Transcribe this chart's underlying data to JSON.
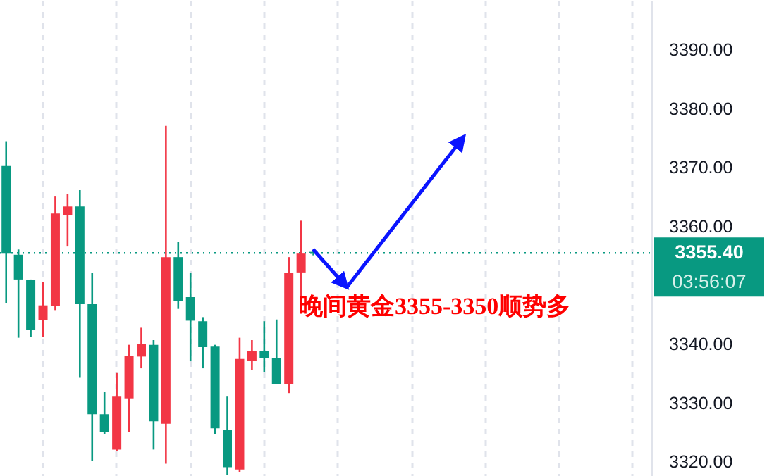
{
  "chart_data": {
    "type": "candlestick",
    "categories": [
      null,
      null,
      null,
      null,
      null,
      null,
      null,
      null,
      null,
      null,
      null,
      null,
      null,
      null,
      null,
      null,
      null,
      null,
      null,
      null,
      null,
      null,
      null,
      null,
      null,
      null,
      null,
      null,
      null,
      null,
      null,
      null,
      null,
      null,
      null,
      null,
      null,
      null,
      null,
      null,
      null,
      null,
      null,
      null,
      null,
      null,
      null,
      null,
      null,
      null,
      null,
      null,
      null
    ],
    "ohlc": [
      [
        3370.2,
        3374.4,
        3346.9,
        3355.3
      ],
      [
        3355.1,
        3356.0,
        3341.0,
        3350.9
      ],
      [
        3350.9,
        3350.9,
        3341.1,
        3342.4
      ],
      [
        3344.0,
        3350.5,
        3341.1,
        3346.5
      ],
      [
        3346.4,
        3365.0,
        3345.7,
        3362.1
      ],
      [
        3361.8,
        3365.4,
        3356.5,
        3363.3
      ],
      [
        3363.3,
        3366.1,
        3334.2,
        3346.7
      ],
      [
        3346.7,
        3352.0,
        3320.1,
        3328.0
      ],
      [
        3328.0,
        3331.8,
        3324.6,
        3325.0
      ],
      [
        3322.0,
        3335.0,
        3321.8,
        3331.0
      ],
      [
        3330.7,
        3339.8,
        3325.0,
        3337.9
      ],
      [
        3337.8,
        3342.7,
        3335.8,
        3340.0
      ],
      [
        3339.8,
        3340.6,
        3322.0,
        3326.8
      ],
      [
        3326.4,
        3377.0,
        3319.6,
        3354.7
      ],
      [
        3354.7,
        3357.3,
        3345.9,
        3347.3
      ],
      [
        3347.9,
        3352.0,
        3337.0,
        3343.9
      ],
      [
        3343.8,
        3344.5,
        3335.8,
        3339.4
      ],
      [
        3339.5,
        3339.8,
        3324.6,
        3325.6
      ],
      [
        3325.4,
        3331.0,
        3317.7,
        3319.0
      ],
      [
        3318.6,
        3341.0,
        3318.2,
        3337.4
      ],
      [
        3337.1,
        3340.6,
        3335.5,
        3338.7
      ],
      [
        3338.7,
        3343.8,
        3335.2,
        3337.6
      ],
      [
        3337.6,
        3344.1,
        3333.1,
        3333.1
      ],
      [
        3333.1,
        3354.7,
        3331.6,
        3352.1
      ],
      [
        3352.1,
        3360.9,
        3347.7,
        3355.3
      ],
      [
        3355.6,
        3355.9,
        3355.0,
        3355.4
      ],
      null,
      null,
      null,
      null,
      null,
      null,
      null,
      null,
      null,
      null,
      null,
      null,
      null,
      null,
      null,
      null,
      null,
      null,
      null,
      null,
      null,
      null,
      null,
      null,
      null,
      null,
      null
    ],
    "colors": [
      "#089981",
      "#089981",
      "#089981",
      "#f23645",
      "#f23645",
      "#f23645",
      "#089981",
      "#089981",
      "#089981",
      "#f23645",
      "#f23645",
      "#f23645",
      "#089981",
      "#f23645",
      "#089981",
      "#089981",
      "#089981",
      "#089981",
      "#089981",
      "#f23645",
      "#f23645",
      "#089981",
      "#089981",
      "#f23645",
      "#f23645",
      "#089981",
      null,
      null,
      null,
      null,
      null,
      null,
      null,
      null,
      null,
      null,
      null,
      null,
      null,
      null,
      null,
      null,
      null,
      null,
      null,
      null,
      null,
      null,
      null,
      null,
      null,
      null,
      null
    ],
    "ylim": [
      3317.5,
      3398.4
    ],
    "yticks": [
      {
        "value": 3320,
        "label": "3320.00"
      },
      {
        "value": 3330,
        "label": "3330.00"
      },
      {
        "value": 3340,
        "label": "3340.00"
      },
      {
        "value": 3360,
        "label": "3360.00"
      },
      {
        "value": 3370,
        "label": "3370.00"
      },
      {
        "value": 3380,
        "label": "3380.00"
      },
      {
        "value": 3390,
        "label": "3390.00"
      }
    ],
    "ref_lines": [
      {
        "axis": "y",
        "value": 3355.4,
        "label": "3355.40",
        "color": "#089981",
        "line_style": "dotted"
      }
    ],
    "annotations": [
      "03:56:07",
      "晚间黄金3355-3350顺势多"
    ],
    "grid": "x",
    "tick_labels": "y"
  }
}
